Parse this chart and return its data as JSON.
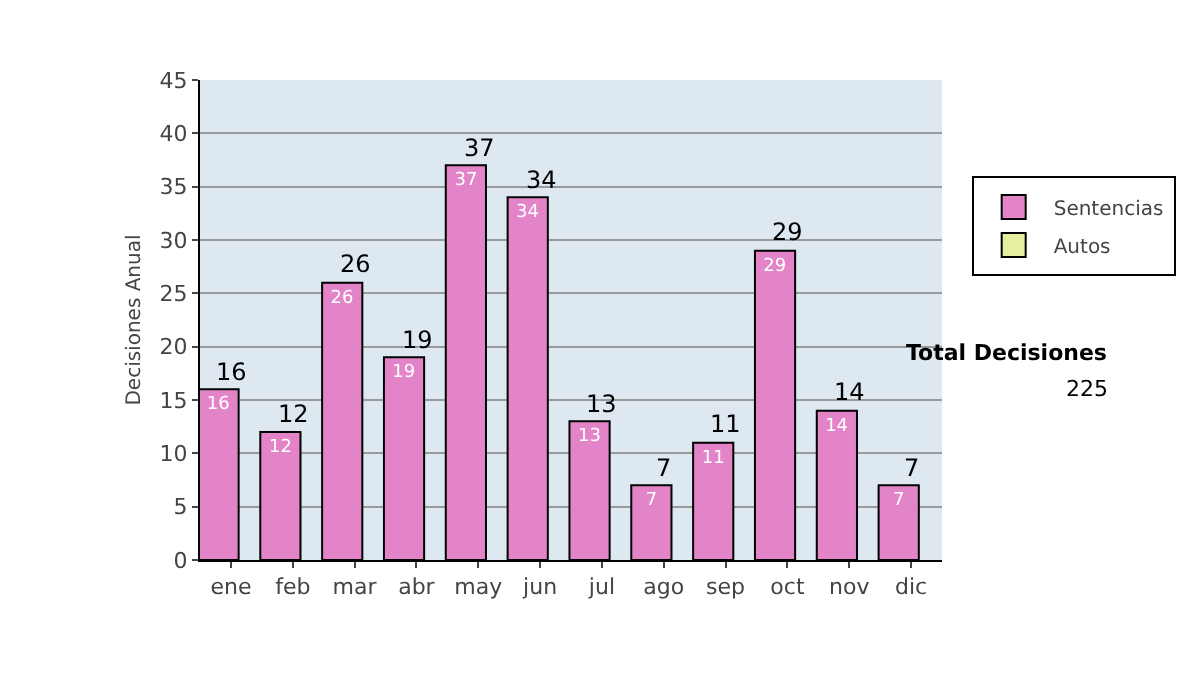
{
  "chart_data": {
    "type": "bar",
    "ylabel": "Decisiones Anual",
    "categories": [
      "ene",
      "feb",
      "mar",
      "abr",
      "may",
      "jun",
      "jul",
      "ago",
      "sep",
      "oct",
      "nov",
      "dic"
    ],
    "series": [
      {
        "name": "Sentencias",
        "color": "#e384c9",
        "values": [
          16,
          12,
          26,
          19,
          37,
          34,
          13,
          7,
          11,
          29,
          14,
          7
        ],
        "value_labels": [
          "16",
          "12",
          "26",
          "19",
          "37",
          "34",
          "13",
          "7",
          "11",
          "29",
          "14",
          "7"
        ]
      },
      {
        "name": "Autos",
        "color": "#e8eea0",
        "values": [
          null,
          null,
          null,
          null,
          null,
          null,
          null,
          null,
          null,
          null,
          null,
          null
        ]
      }
    ],
    "ylim": [
      0,
      45
    ],
    "yticks": [
      0,
      5,
      10,
      15,
      20,
      25,
      30,
      35,
      40,
      45
    ],
    "grid": "y",
    "legend": "right",
    "annotations": [
      "Total Decisiones",
      "225",
      {
        "text": "16",
        "x": "ene",
        "y": 16
      },
      {
        "text": "12",
        "x": "feb",
        "y": 12
      },
      {
        "text": "26",
        "x": "mar",
        "y": 26
      },
      {
        "text": "19",
        "x": "abr",
        "y": 19
      },
      {
        "text": "37",
        "x": "may",
        "y": 37
      },
      {
        "text": "34",
        "x": "jun",
        "y": 34
      },
      {
        "text": "13",
        "x": "jul",
        "y": 13
      },
      {
        "text": "7",
        "x": "ago",
        "y": 7
      },
      {
        "text": "11",
        "x": "sep",
        "y": 11
      },
      {
        "text": "29",
        "x": "oct",
        "y": 29
      },
      {
        "text": "14",
        "x": "nov",
        "y": 14
      },
      {
        "text": "7",
        "x": "dic",
        "y": 7
      }
    ]
  }
}
